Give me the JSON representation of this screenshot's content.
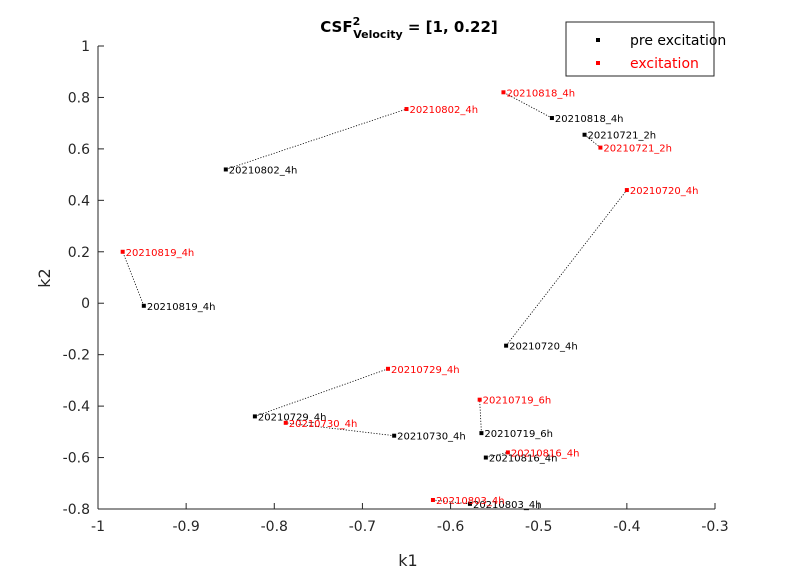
{
  "chart_data": {
    "type": "scatter",
    "title": {
      "main": "CSF",
      "sup": "2",
      "sub": "Velocity",
      "rest": " = [1, 0.22]"
    },
    "xlabel": "k1",
    "ylabel": "k2",
    "xlim": [
      -1,
      -0.3
    ],
    "ylim": [
      -0.8,
      1
    ],
    "xticks": [
      -1,
      -0.9,
      -0.8,
      -0.7,
      -0.6,
      -0.5,
      -0.4,
      -0.3
    ],
    "xtick_labels": [
      "-1",
      "-0.9",
      "-0.8",
      "-0.7",
      "-0.6",
      "-0.5",
      "-0.4",
      "-0.3"
    ],
    "yticks": [
      -0.8,
      -0.6,
      -0.4,
      -0.2,
      0,
      0.2,
      0.4,
      0.6,
      0.8,
      1
    ],
    "ytick_labels": [
      "-0.8",
      "-0.6",
      "-0.4",
      "-0.2",
      "0",
      "0.2",
      "0.4",
      "0.6",
      "0.8",
      "1"
    ],
    "grid": false,
    "legend_position": "top-right",
    "colors": {
      "pre": "#000000",
      "exc": "#ff0000",
      "link": "#000000"
    },
    "series": [
      {
        "name": "pre excitation",
        "points": [
          {
            "label": "20210802_4h",
            "x": -0.855,
            "y": 0.52
          },
          {
            "label": "20210818_4h",
            "x": -0.485,
            "y": 0.72
          },
          {
            "label": "20210721_2h",
            "x": -0.448,
            "y": 0.655
          },
          {
            "label": "20210819_4h",
            "x": -0.948,
            "y": -0.01
          },
          {
            "label": "20210720_4h",
            "x": -0.537,
            "y": -0.165
          },
          {
            "label": "20210729_4h",
            "x": -0.822,
            "y": -0.44
          },
          {
            "label": "20210730_4h",
            "x": -0.664,
            "y": -0.515
          },
          {
            "label": "20210719_6h",
            "x": -0.565,
            "y": -0.505
          },
          {
            "label": "20210816_4h",
            "x": -0.56,
            "y": -0.6
          },
          {
            "label": "20210803_4h",
            "x": -0.578,
            "y": -0.78
          }
        ]
      },
      {
        "name": "excitation",
        "points": [
          {
            "label": "20210802_4h",
            "x": -0.65,
            "y": 0.755
          },
          {
            "label": "20210818_4h",
            "x": -0.54,
            "y": 0.82
          },
          {
            "label": "20210721_2h",
            "x": -0.43,
            "y": 0.605
          },
          {
            "label": "20210819_4h",
            "x": -0.972,
            "y": 0.2
          },
          {
            "label": "20210720_4h",
            "x": -0.4,
            "y": 0.44
          },
          {
            "label": "20210729_4h",
            "x": -0.671,
            "y": -0.255
          },
          {
            "label": "20210730_4h",
            "x": -0.787,
            "y": -0.465
          },
          {
            "label": "20210719_6h",
            "x": -0.567,
            "y": -0.375
          },
          {
            "label": "20210816_4h",
            "x": -0.535,
            "y": -0.58
          },
          {
            "label": "20210803_4h",
            "x": -0.62,
            "y": -0.765
          }
        ]
      }
    ]
  }
}
